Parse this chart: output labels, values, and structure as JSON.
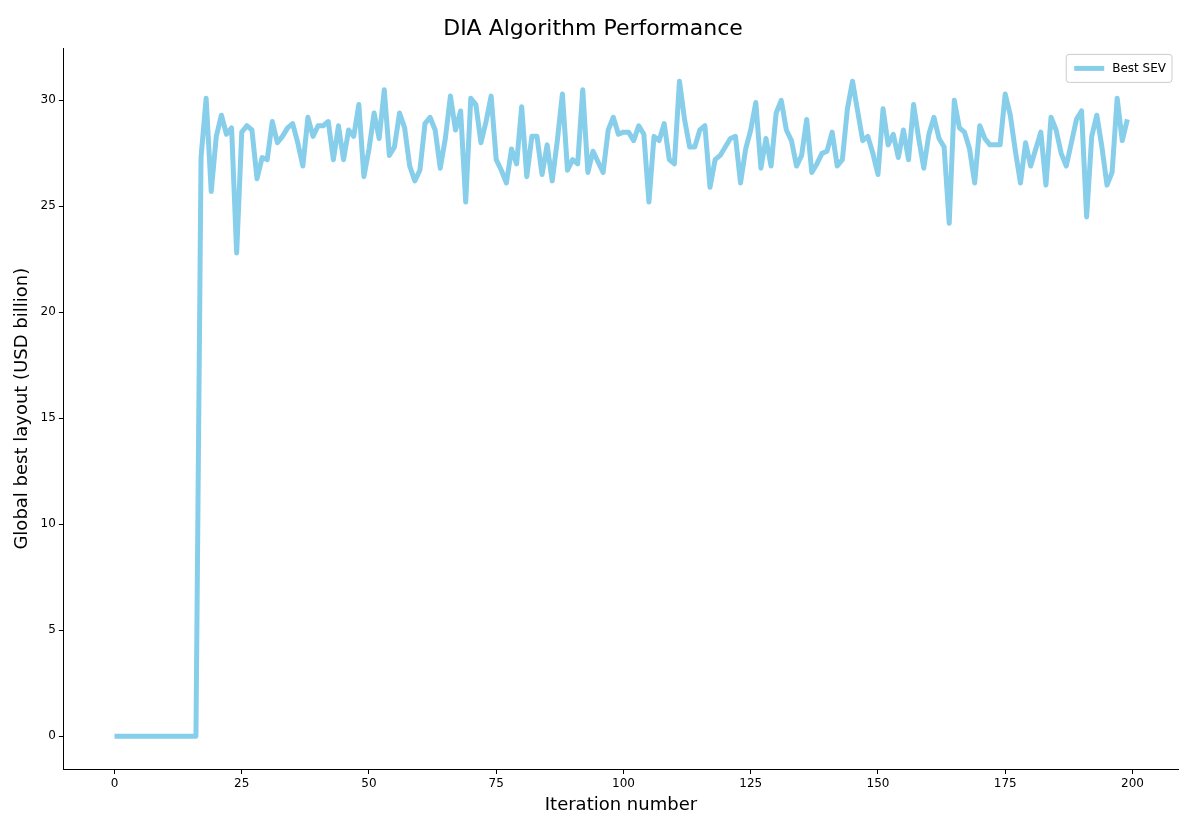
{
  "chart_data": {
    "type": "line",
    "title": "DIA Algorithm Performance",
    "xlabel": "Iteration number",
    "ylabel": "Global best layout (USD billion)",
    "x": [
      0,
      1,
      2,
      3,
      4,
      5,
      6,
      7,
      8,
      9,
      10,
      11,
      12,
      13,
      14,
      15,
      16,
      17,
      18,
      19,
      20,
      21,
      22,
      23,
      24,
      25,
      26,
      27,
      28,
      29,
      30,
      31,
      32,
      33,
      34,
      35,
      36,
      37,
      38,
      39,
      40,
      41,
      42,
      43,
      44,
      45,
      46,
      47,
      48,
      49,
      50,
      51,
      52,
      53,
      54,
      55,
      56,
      57,
      58,
      59,
      60,
      61,
      62,
      63,
      64,
      65,
      66,
      67,
      68,
      69,
      70,
      71,
      72,
      73,
      74,
      75,
      76,
      77,
      78,
      79,
      80,
      81,
      82,
      83,
      84,
      85,
      86,
      87,
      88,
      89,
      90,
      91,
      92,
      93,
      94,
      95,
      96,
      97,
      98,
      99,
      100,
      101,
      102,
      103,
      104,
      105,
      106,
      107,
      108,
      109,
      110,
      111,
      112,
      113,
      114,
      115,
      116,
      117,
      118,
      119,
      120,
      121,
      122,
      123,
      124,
      125,
      126,
      127,
      128,
      129,
      130,
      131,
      132,
      133,
      134,
      135,
      136,
      137,
      138,
      139,
      140,
      141,
      142,
      143,
      144,
      145,
      146,
      147,
      148,
      149,
      150,
      151,
      152,
      153,
      154,
      155,
      156,
      157,
      158,
      159,
      160,
      161,
      162,
      163,
      164,
      165,
      166,
      167,
      168,
      169,
      170,
      171,
      172,
      173,
      174,
      175,
      176,
      177,
      178,
      179,
      180,
      181,
      182,
      183,
      184,
      185,
      186,
      187,
      188,
      189,
      190,
      191,
      192,
      193,
      194,
      195,
      196,
      197,
      198,
      199
    ],
    "series": [
      {
        "name": "Best SEV",
        "color": "#87ceeb",
        "values": [
          0,
          0,
          0,
          0,
          0,
          0,
          0,
          0,
          0,
          0,
          0,
          0,
          0,
          0,
          0,
          0,
          0,
          27.3,
          30.1,
          25.7,
          28.3,
          29.3,
          28.4,
          28.7,
          22.8,
          28.5,
          28.8,
          28.6,
          26.3,
          27.3,
          27.2,
          29.0,
          28.0,
          28.3,
          28.7,
          28.9,
          28.0,
          26.9,
          29.2,
          28.3,
          28.8,
          28.8,
          29.0,
          27.2,
          28.8,
          27.2,
          28.6,
          28.3,
          29.8,
          26.4,
          27.7,
          29.4,
          28.2,
          30.5,
          27.4,
          27.8,
          29.4,
          28.7,
          26.9,
          26.2,
          26.7,
          28.9,
          29.2,
          28.6,
          26.8,
          28.2,
          30.2,
          28.6,
          29.5,
          25.2,
          30.1,
          29.8,
          28.0,
          29.0,
          30.2,
          27.2,
          26.7,
          26.1,
          27.7,
          27.0,
          29.7,
          26.4,
          28.3,
          28.3,
          26.5,
          27.9,
          26.2,
          28.1,
          30.3,
          26.7,
          27.2,
          27.0,
          30.5,
          26.6,
          27.6,
          27.1,
          26.6,
          28.6,
          29.2,
          28.4,
          28.5,
          28.5,
          28.1,
          28.8,
          28.4,
          25.2,
          28.3,
          28.1,
          28.9,
          27.2,
          27.0,
          30.9,
          29.1,
          27.8,
          27.8,
          28.6,
          28.8,
          25.9,
          27.2,
          27.4,
          27.8,
          28.2,
          28.3,
          26.1,
          27.7,
          28.6,
          29.9,
          26.8,
          28.2,
          26.9,
          29.4,
          30.0,
          28.6,
          28.1,
          26.9,
          27.4,
          29.1,
          26.6,
          27.0,
          27.5,
          27.6,
          28.5,
          26.9,
          27.2,
          29.6,
          30.9,
          29.5,
          28.1,
          28.3,
          27.5,
          26.5,
          29.6,
          27.9,
          28.4,
          27.3,
          28.6,
          27.2,
          29.8,
          28.2,
          26.8,
          28.4,
          29.2,
          28.2,
          27.8,
          24.2,
          30.0,
          28.7,
          28.5,
          27.7,
          26.1,
          28.8,
          28.2,
          27.9,
          27.9,
          27.9,
          30.3,
          29.3,
          27.6,
          26.1,
          28.0,
          26.9,
          27.7,
          28.5,
          26.0,
          29.2,
          28.6,
          27.5,
          26.9,
          28.0,
          29.1,
          29.5,
          24.5,
          28.3,
          29.3,
          27.8,
          26.0,
          26.6,
          30.1,
          28.1,
          29.1
        ]
      }
    ],
    "xlim": [
      -9.95,
      208.95
    ],
    "xticks": [
      0,
      25,
      50,
      75,
      100,
      125,
      150,
      175,
      200
    ],
    "ylim": [
      -1.545,
      32.45
    ],
    "yticks": [
      0,
      5,
      10,
      15,
      20,
      25,
      30
    ],
    "grid": false,
    "legend": "top right",
    "marker": "none",
    "line_style": "solid"
  }
}
